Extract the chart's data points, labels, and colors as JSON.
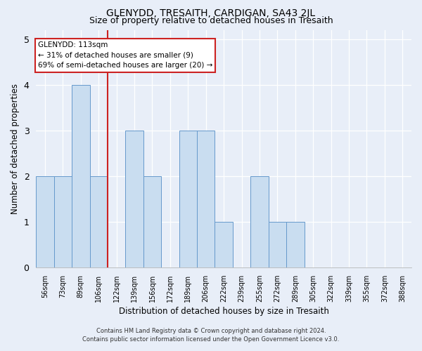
{
  "title": "GLENYDD, TRESAITH, CARDIGAN, SA43 2JL",
  "subtitle": "Size of property relative to detached houses in Tresaith",
  "xlabel": "Distribution of detached houses by size in Tresaith",
  "ylabel": "Number of detached properties",
  "bin_labels": [
    "56sqm",
    "73sqm",
    "89sqm",
    "106sqm",
    "122sqm",
    "139sqm",
    "156sqm",
    "172sqm",
    "189sqm",
    "206sqm",
    "222sqm",
    "239sqm",
    "255sqm",
    "272sqm",
    "289sqm",
    "305sqm",
    "322sqm",
    "339sqm",
    "355sqm",
    "372sqm",
    "388sqm"
  ],
  "bar_heights": [
    2,
    2,
    4,
    2,
    0,
    3,
    2,
    0,
    3,
    3,
    1,
    0,
    2,
    1,
    1,
    0,
    0,
    0,
    0,
    0,
    0
  ],
  "bar_color": "#c9ddf0",
  "bar_edgecolor": "#6699cc",
  "vline_x": 3.5,
  "vline_color": "#cc2222",
  "annotation_title": "GLENYDD: 113sqm",
  "annotation_line1": "← 31% of detached houses are smaller (9)",
  "annotation_line2": "69% of semi-detached houses are larger (20) →",
  "annotation_box_facecolor": "#ffffff",
  "annotation_box_edgecolor": "#cc2222",
  "ylim": [
    0,
    5.2
  ],
  "yticks": [
    0,
    1,
    2,
    3,
    4,
    5
  ],
  "footer_line1": "Contains HM Land Registry data © Crown copyright and database right 2024.",
  "footer_line2": "Contains public sector information licensed under the Open Government Licence v3.0.",
  "bg_color": "#e8eef8",
  "title_fontsize": 10,
  "subtitle_fontsize": 9,
  "tick_fontsize": 7,
  "ylabel_fontsize": 8.5,
  "xlabel_fontsize": 8.5,
  "annotation_fontsize": 7.5,
  "footer_fontsize": 6
}
